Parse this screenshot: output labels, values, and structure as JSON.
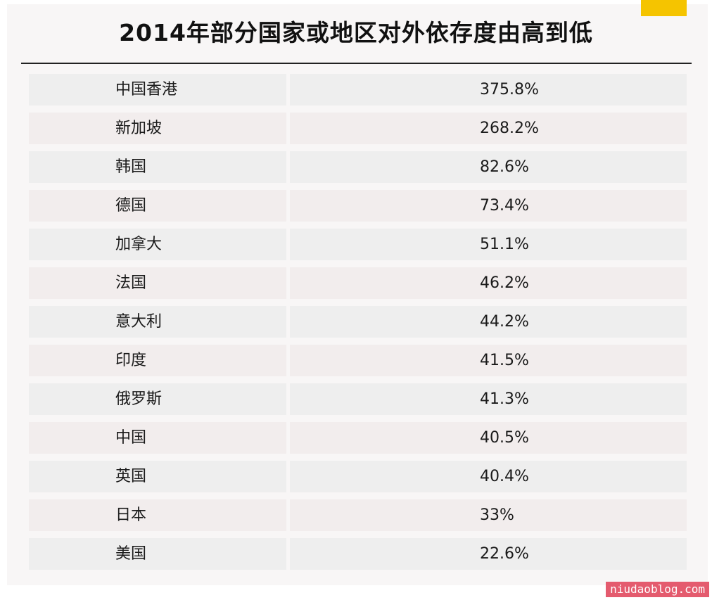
{
  "title": "2014年部分国家或地区对外依存度由高到低",
  "watermark": "niudaoblog.com",
  "colors": {
    "accent": "#f5c400",
    "row_odd": "#eeeeee",
    "row_even": "#f2eded",
    "watermark_bg": "#e45b6e"
  },
  "rows": [
    {
      "region": "中国香港",
      "value": "375.8%"
    },
    {
      "region": "新加坡",
      "value": "268.2%"
    },
    {
      "region": "韩国",
      "value": "82.6%"
    },
    {
      "region": "德国",
      "value": "73.4%"
    },
    {
      "region": "加拿大",
      "value": "51.1%"
    },
    {
      "region": "法国",
      "value": "46.2%"
    },
    {
      "region": "意大利",
      "value": "44.2%"
    },
    {
      "region": "印度",
      "value": "41.5%"
    },
    {
      "region": "俄罗斯",
      "value": "41.3%"
    },
    {
      "region": "中国",
      "value": "40.5%"
    },
    {
      "region": "英国",
      "value": "40.4%"
    },
    {
      "region": "日本",
      "value": "33%"
    },
    {
      "region": "美国",
      "value": "22.6%"
    }
  ]
}
